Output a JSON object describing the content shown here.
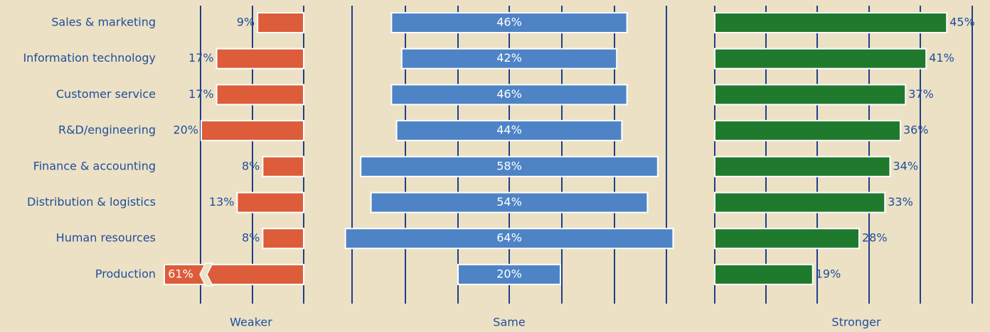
{
  "colors": {
    "background": "#ece1c5",
    "label_text": "#1f4e9c",
    "gridline": "#1f3f8a",
    "weaker": "#dd5c39",
    "same": "#4e84c6",
    "stronger": "#1f7a2e",
    "bar_border": "#ffffff"
  },
  "chart_data": {
    "type": "bar",
    "categories": [
      "Sales & marketing",
      "Information technology",
      "Customer service",
      "R&D/engineering",
      "Finance & accounting",
      "Distribution & logistics",
      "Human resources",
      "Production"
    ],
    "series": [
      {
        "name": "Weaker",
        "values": [
          9,
          17,
          17,
          20,
          8,
          13,
          8,
          61
        ],
        "labels": [
          "9%",
          "17%",
          "17%",
          "20%",
          "8%",
          "13%",
          "8%",
          "61%"
        ],
        "axis_break_on": "Production"
      },
      {
        "name": "Same",
        "values": [
          46,
          42,
          46,
          44,
          58,
          54,
          64,
          20
        ],
        "labels": [
          "46%",
          "42%",
          "46%",
          "44%",
          "58%",
          "54%",
          "64%",
          "20%"
        ]
      },
      {
        "name": "Stronger",
        "values": [
          45,
          41,
          37,
          36,
          34,
          33,
          28,
          19
        ],
        "labels": [
          "45%",
          "41%",
          "37%",
          "36%",
          "34%",
          "33%",
          "28%",
          "19%"
        ]
      }
    ],
    "grid": true,
    "legend": "none"
  }
}
